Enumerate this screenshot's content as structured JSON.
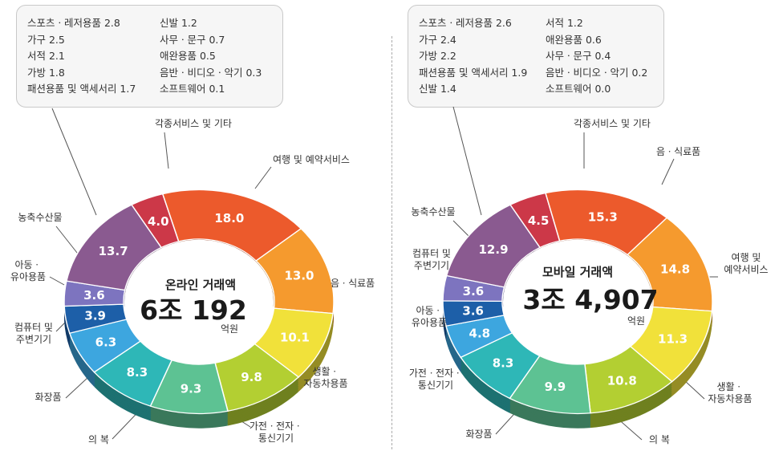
{
  "chart_data": [
    {
      "type": "pie",
      "center_title": "온라인 거래액",
      "center_value": "6조 192",
      "center_unit": "억원",
      "slices": [
        {
          "label": "각종서비스 및 기타",
          "value": 4.0,
          "color": "#cc3848"
        },
        {
          "label": "여행 및 예약서비스",
          "value": 18.0,
          "color": "#ec5a2c"
        },
        {
          "label": "음ㆍ식료품",
          "value": 13.0,
          "color": "#f59a2e"
        },
        {
          "label": "생활ㆍ자동차용품",
          "value": 10.1,
          "color": "#f1e13a"
        },
        {
          "label": "가전ㆍ전자ㆍ통신기기",
          "value": 9.8,
          "color": "#b3cf32"
        },
        {
          "label": "의 복",
          "value": 9.3,
          "color": "#5dc293"
        },
        {
          "label": "화장품",
          "value": 8.3,
          "color": "#2eb7b7"
        },
        {
          "label": "컴퓨터 및 주변기기",
          "value": 6.3,
          "color": "#3da6df"
        },
        {
          "label": "아동ㆍ유아용품",
          "value": 3.9,
          "color": "#1d5fa8"
        },
        {
          "label": "농축수산물",
          "value": 3.6,
          "color": "#7d74bf"
        },
        {
          "label": "",
          "value": 13.7,
          "color": "#8a5a90"
        }
      ],
      "other_items": [
        {
          "label": "스포츠ㆍ레저용품",
          "value": "2.8"
        },
        {
          "label": "가구",
          "value": "2.5"
        },
        {
          "label": "서적",
          "value": "2.1"
        },
        {
          "label": "가방",
          "value": "1.8"
        },
        {
          "label": "패션용품 및 액세서리",
          "value": "1.7"
        },
        {
          "label": "신발",
          "value": "1.2"
        },
        {
          "label": "사무ㆍ문구",
          "value": "0.7"
        },
        {
          "label": "애완용품",
          "value": "0.5"
        },
        {
          "label": "음반ㆍ비디오ㆍ악기",
          "value": "0.3"
        },
        {
          "label": "소프트웨어",
          "value": "0.1"
        }
      ]
    },
    {
      "type": "pie",
      "center_title": "모바일 거래액",
      "center_value": "3조 4,907",
      "center_unit": "억원",
      "slices": [
        {
          "label": "각종서비스 및 기타",
          "value": 4.5,
          "color": "#cc3848"
        },
        {
          "label": "음ㆍ식료품",
          "value": 15.3,
          "color": "#ec5a2c"
        },
        {
          "label": "여행 및 예약서비스",
          "value": 14.8,
          "color": "#f59a2e"
        },
        {
          "label": "생활ㆍ자동차용품",
          "value": 11.3,
          "color": "#f1e13a"
        },
        {
          "label": "의 복",
          "value": 10.8,
          "color": "#b3cf32"
        },
        {
          "label": "화장품",
          "value": 9.9,
          "color": "#5dc293"
        },
        {
          "label": "가전ㆍ전자ㆍ통신기기",
          "value": 8.3,
          "color": "#2eb7b7"
        },
        {
          "label": "아동ㆍ유아용품",
          "value": 4.8,
          "color": "#3da6df"
        },
        {
          "label": "컴퓨터 및 주변기기",
          "value": 3.6,
          "color": "#1d5fa8"
        },
        {
          "label": "농축수산물",
          "value": 3.6,
          "color": "#7d74bf"
        },
        {
          "label": "",
          "value": 12.9,
          "color": "#8a5a90"
        }
      ],
      "other_items": [
        {
          "label": "스포츠ㆍ레저용품",
          "value": "2.6"
        },
        {
          "label": "가구",
          "value": "2.4"
        },
        {
          "label": "가방",
          "value": "2.2"
        },
        {
          "label": "패션용품 및 액세서리",
          "value": "1.9"
        },
        {
          "label": "신발",
          "value": "1.4"
        },
        {
          "label": "서적",
          "value": "1.2"
        },
        {
          "label": "애완용품",
          "value": "0.6"
        },
        {
          "label": "사무ㆍ문구",
          "value": "0.4"
        },
        {
          "label": "음반ㆍ비디오ㆍ악기",
          "value": "0.2"
        },
        {
          "label": "소프트웨어",
          "value": "0.0"
        }
      ]
    }
  ]
}
